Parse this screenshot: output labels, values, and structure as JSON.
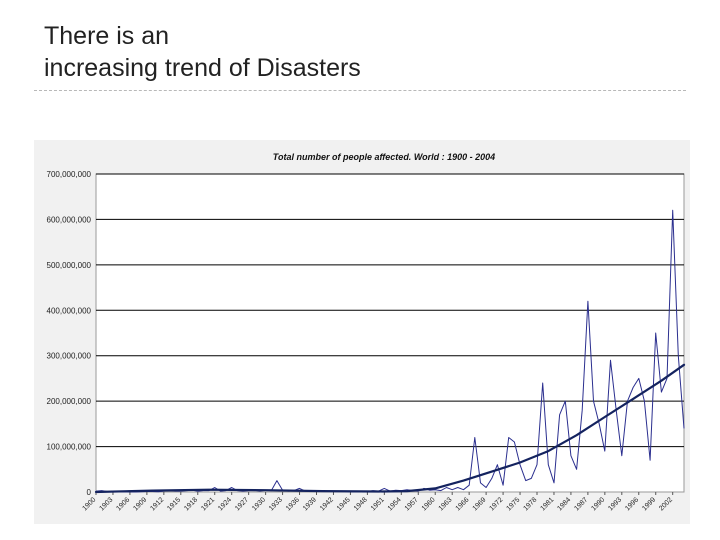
{
  "slide": {
    "title_line1": "There is an",
    "title_line2": "increasing trend of Disasters"
  },
  "chart_data": {
    "type": "line",
    "title": "Total number of people affected. World : 1900 - 2004",
    "xlabel": "",
    "ylabel": "",
    "ylim": [
      0,
      700000000
    ],
    "xlim": [
      1900,
      2004
    ],
    "yticks": [
      0,
      100000000,
      200000000,
      300000000,
      400000000,
      500000000,
      600000000,
      700000000
    ],
    "ytick_labels": [
      "0",
      "100,000,000",
      "200,000,000",
      "300,000,000",
      "400,000,000",
      "500,000,000",
      "600,000,000",
      "700,000,000"
    ],
    "xtick_labels": [
      "1900",
      "1903",
      "1906",
      "1909",
      "1912",
      "1915",
      "1918",
      "1921",
      "1924",
      "1927",
      "1930",
      "1933",
      "1936",
      "1939",
      "1942",
      "1945",
      "1948",
      "1951",
      "1954",
      "1957",
      "1960",
      "1963",
      "1966",
      "1969",
      "1972",
      "1975",
      "1978",
      "1981",
      "1984",
      "1987",
      "1990",
      "1993",
      "1996",
      "1999",
      "2002"
    ],
    "grid": true,
    "legend": "none",
    "colors": {
      "series": "#2b2f8f",
      "trend": "#14235f",
      "plot_bg": "#ffffff",
      "outer_bg": "#f1f1f1",
      "grid": "#000000"
    },
    "series": [
      {
        "x": [
          1900,
          1901,
          1902,
          1903,
          1904,
          1905,
          1906,
          1907,
          1908,
          1909,
          1910,
          1911,
          1912,
          1913,
          1914,
          1915,
          1916,
          1917,
          1918,
          1919,
          1920,
          1921,
          1922,
          1923,
          1924,
          1925,
          1926,
          1927,
          1928,
          1929,
          1930,
          1931,
          1932,
          1933,
          1934,
          1935,
          1936,
          1937,
          1938,
          1939,
          1940,
          1941,
          1942,
          1943,
          1944,
          1945,
          1946,
          1947,
          1948,
          1949,
          1950,
          1951,
          1952,
          1953,
          1954,
          1955,
          1956,
          1957,
          1958,
          1959,
          1960,
          1961,
          1962,
          1963,
          1964,
          1965,
          1966,
          1967,
          1968,
          1969,
          1970,
          1971,
          1972,
          1973,
          1974,
          1975,
          1976,
          1977,
          1978,
          1979,
          1980,
          1981,
          1982,
          1983,
          1984,
          1985,
          1986,
          1987,
          1988,
          1989,
          1990,
          1991,
          1992,
          1993,
          1994,
          1995,
          1996,
          1997,
          1998,
          1999,
          2000,
          2001,
          2002,
          2003,
          2004
        ],
        "values": [
          2000000,
          3000000,
          1000000,
          0,
          0,
          0,
          0,
          0,
          500000,
          1000000,
          1000000,
          500000,
          2000000,
          3000000,
          2000000,
          2000000,
          3000000,
          4000000,
          2000000,
          3000000,
          3000000,
          10000000,
          2000000,
          3000000,
          10000000,
          3000000,
          2000000,
          3000000,
          4000000,
          2000000,
          4000000,
          3000000,
          25000000,
          4000000,
          2000000,
          3000000,
          8000000,
          2000000,
          3000000,
          2000000,
          1000000,
          2000000,
          2000000,
          1000000,
          1000000,
          0,
          0,
          2000000,
          1000000,
          3000000,
          2000000,
          8000000,
          2000000,
          4000000,
          3000000,
          5000000,
          3000000,
          2000000,
          8000000,
          4000000,
          5000000,
          3000000,
          10000000,
          5000000,
          10000000,
          5000000,
          15000000,
          120000000,
          20000000,
          10000000,
          30000000,
          60000000,
          15000000,
          120000000,
          110000000,
          60000000,
          25000000,
          30000000,
          60000000,
          240000000,
          60000000,
          20000000,
          170000000,
          200000000,
          80000000,
          50000000,
          180000000,
          420000000,
          200000000,
          150000000,
          90000000,
          290000000,
          180000000,
          80000000,
          200000000,
          230000000,
          250000000,
          200000000,
          70000000,
          350000000,
          220000000,
          250000000,
          620000000,
          300000000,
          140000000
        ]
      },
      {
        "x": [
          1900,
          1910,
          1920,
          1930,
          1940,
          1950,
          1955,
          1960,
          1965,
          1970,
          1975,
          1980,
          1985,
          1990,
          1995,
          2000,
          2004
        ],
        "values": [
          0,
          3000000,
          5000000,
          4000000,
          2000000,
          1000000,
          2000000,
          8000000,
          25000000,
          45000000,
          65000000,
          90000000,
          125000000,
          165000000,
          205000000,
          245000000,
          280000000
        ]
      }
    ]
  }
}
